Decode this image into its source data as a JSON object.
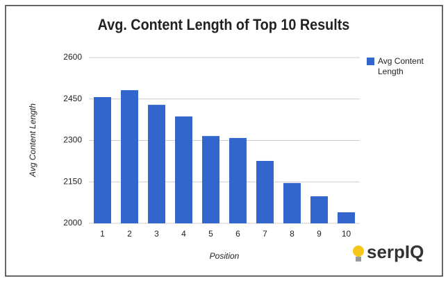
{
  "chart_data": {
    "type": "bar",
    "title": "Avg. Content Length of Top 10 Results",
    "categories": [
      "1",
      "2",
      "3",
      "4",
      "5",
      "6",
      "7",
      "8",
      "9",
      "10"
    ],
    "series": [
      {
        "name": "Avg Content Length",
        "color": "#3366cc",
        "values": [
          2457,
          2482,
          2429,
          2387,
          2316,
          2309,
          2226,
          2146,
          2098,
          2040
        ]
      }
    ],
    "ylim": [
      2000,
      2600
    ],
    "yticks": [
      2000,
      2150,
      2300,
      2450,
      2600
    ],
    "grid": true,
    "xlabel": "Position",
    "ylabel": "Avg Content Length",
    "legend": "right",
    "logo": "serpIQ"
  }
}
